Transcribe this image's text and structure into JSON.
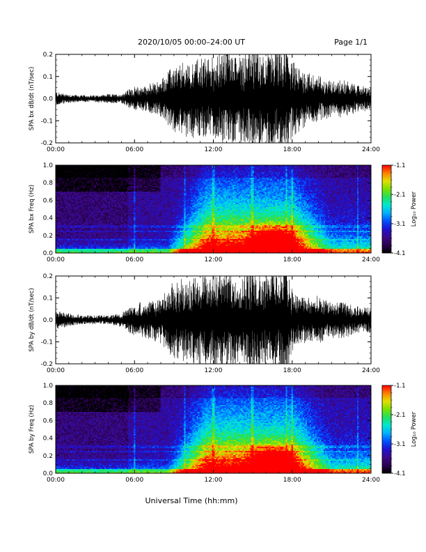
{
  "header": {
    "title": "2020/10/05  00:00–24:00 UT",
    "page": "Page 1/1"
  },
  "footer": {
    "xlabel": "Universal Time (hh:mm)"
  },
  "colorbar_colors": [
    "#000000",
    "#2a0050",
    "#3a0a8a",
    "#2010d0",
    "#0050ff",
    "#00b0ff",
    "#00e8d0",
    "#20e060",
    "#7ae000",
    "#e0e000",
    "#ff8000",
    "#ff0000"
  ],
  "chart_data": [
    {
      "type": "line",
      "ylabel": "SPA bx dB/dt (nT/sec)",
      "xlim": [
        0,
        24
      ],
      "ylim": [
        -0.2,
        0.2
      ],
      "x_tick_labels": [
        "00:00",
        "06:00",
        "12:00",
        "18:00",
        "24:00"
      ],
      "y_tick_labels": [
        "-0.2",
        "-0.1",
        "0.0",
        "0.1",
        "0.2"
      ],
      "y_ticks": [
        -0.2,
        -0.1,
        0.0,
        0.1,
        0.2
      ],
      "envelope": {
        "x": [
          0,
          1,
          2,
          3,
          4,
          5,
          5.5,
          6,
          7,
          8,
          8.5,
          9,
          10,
          11,
          12,
          13,
          14,
          15,
          16,
          17,
          17.5,
          18,
          19,
          20,
          21,
          22,
          23,
          24
        ],
        "amplitude": [
          0.03,
          0.02,
          0.015,
          0.015,
          0.02,
          0.02,
          0.04,
          0.05,
          0.06,
          0.08,
          0.12,
          0.14,
          0.16,
          0.18,
          0.18,
          0.22,
          0.2,
          0.22,
          0.2,
          0.22,
          0.24,
          0.16,
          0.12,
          0.1,
          0.08,
          0.08,
          0.06,
          0.05
        ]
      }
    },
    {
      "type": "heatmap",
      "ylabel": "SPA bx Freq (Hz)",
      "xlim": [
        0,
        24
      ],
      "ylim": [
        0,
        1.0
      ],
      "x_tick_labels": [
        "00:00",
        "06:00",
        "12:00",
        "18:00",
        "24:00"
      ],
      "y_tick_labels": [
        "0.0",
        "0.2",
        "0.4",
        "0.6",
        "0.8",
        "1.0"
      ],
      "y_ticks": [
        0.0,
        0.2,
        0.4,
        0.6,
        0.8,
        1.0
      ],
      "colorbar": {
        "label": "Log₁₀ Power",
        "range": [
          -4.1,
          -1.1
        ],
        "tick_labels": [
          "-1.1",
          "-2.1",
          "-3.1",
          "-4.1"
        ],
        "ticks": [
          -1.1,
          -2.1,
          -3.1,
          -4.1
        ]
      }
    },
    {
      "type": "line",
      "ylabel": "SPA by dB/dt (nT/sec)",
      "xlim": [
        0,
        24
      ],
      "ylim": [
        -0.2,
        0.2
      ],
      "x_tick_labels": [
        "00:00",
        "06:00",
        "12:00",
        "18:00",
        "24:00"
      ],
      "y_tick_labels": [
        "-0.2",
        "-0.1",
        "0.0",
        "0.1",
        "0.2"
      ],
      "y_ticks": [
        -0.2,
        -0.1,
        0.0,
        0.1,
        0.2
      ],
      "envelope": {
        "x": [
          0,
          1,
          2,
          3,
          4,
          5,
          5.5,
          6,
          7,
          8,
          8.5,
          9,
          10,
          11,
          12,
          13,
          14,
          15,
          16,
          17,
          17.5,
          18,
          19,
          20,
          21,
          22,
          23,
          24
        ],
        "amplitude": [
          0.04,
          0.03,
          0.02,
          0.02,
          0.02,
          0.03,
          0.05,
          0.07,
          0.08,
          0.1,
          0.14,
          0.17,
          0.18,
          0.2,
          0.22,
          0.22,
          0.2,
          0.24,
          0.22,
          0.22,
          0.26,
          0.14,
          0.1,
          0.1,
          0.08,
          0.08,
          0.06,
          0.06
        ]
      }
    },
    {
      "type": "heatmap",
      "ylabel": "SPA by Freq (Hz)",
      "xlim": [
        0,
        24
      ],
      "ylim": [
        0,
        1.0
      ],
      "x_tick_labels": [
        "00:00",
        "06:00",
        "12:00",
        "18:00",
        "24:00"
      ],
      "y_tick_labels": [
        "0.0",
        "0.2",
        "0.4",
        "0.6",
        "0.8",
        "1.0"
      ],
      "y_ticks": [
        0.0,
        0.2,
        0.4,
        0.6,
        0.8,
        1.0
      ],
      "colorbar": {
        "label": "Log₁₀ Power",
        "range": [
          -4.1,
          -1.1
        ],
        "tick_labels": [
          "-1.1",
          "-2.1",
          "-3.1",
          "-4.1"
        ],
        "ticks": [
          -1.1,
          -2.1,
          -3.1,
          -4.1
        ]
      }
    }
  ]
}
